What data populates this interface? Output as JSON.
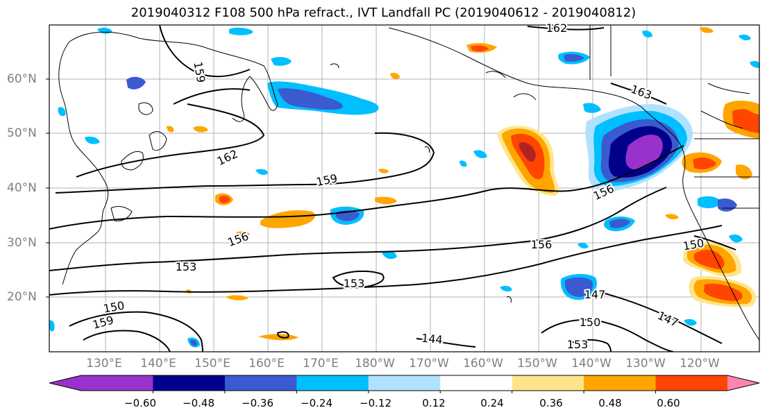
{
  "title": "2019040312 F108 500 hPa refract., IVT Landfall PC (2019040612 - 2019040812)",
  "lat_labels": [
    "60°N",
    "50°N",
    "40°N",
    "30°N",
    "20°N"
  ],
  "lon_labels": [
    "130°E",
    "140°E",
    "150°E",
    "160°E",
    "170°E",
    "180°W",
    "170°W",
    "160°W",
    "150°W",
    "140°W",
    "130°W",
    "120°W"
  ],
  "contour_labels": [
    "162",
    "159",
    "163",
    "162",
    "159",
    "156",
    "156",
    "156",
    "150",
    "153",
    "153",
    "150",
    "159",
    "147",
    "150",
    "147",
    "144",
    "153"
  ],
  "colorbar": {
    "ticks": [
      "−0.60",
      "−0.48",
      "−0.36",
      "−0.24",
      "−0.12",
      "0.12",
      "0.24",
      "0.36",
      "0.48",
      "0.60"
    ],
    "colors": [
      "#9932cc",
      "#00008b",
      "#3a5bd0",
      "#00bfff",
      "#b0e2ff",
      "#ffffff",
      "#ffe58a",
      "#ffa500",
      "#ff4500",
      "#b22222",
      "#ff85b0"
    ]
  },
  "colors": {
    "purple": "#9932cc",
    "navy": "#00008b",
    "royal": "#3a5bd0",
    "sky": "#00bfff",
    "pale": "#b0e2ff",
    "yellow": "#ffe58a",
    "orange": "#ffa500",
    "red": "#ff4500",
    "dark_red": "#b22222"
  }
}
